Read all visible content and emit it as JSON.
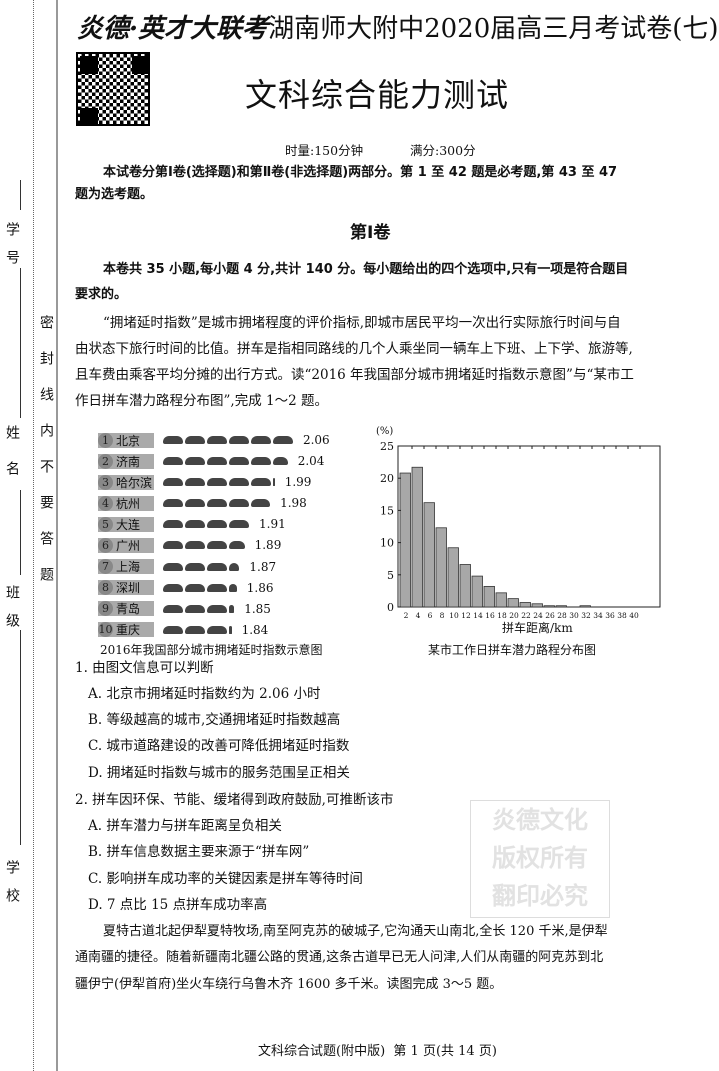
{
  "header": {
    "series": "炎德·英才大联考",
    "school_title": "湖南师大附中2020届高三月考试卷(七)",
    "subject": "文科综合能力测试",
    "time": "时量:150分钟",
    "score": "满分:300分"
  },
  "intro": [
    "本试卷分第Ⅰ卷(选择题)和第Ⅱ卷(非选择题)两部分。第 1 至 42 题是必考题,第 43 至 47",
    "题为选考题。"
  ],
  "section": {
    "title": "第Ⅰ卷",
    "instructions": [
      "本卷共 35 小题,每小题 4 分,共计 140 分。每小题给出的四个选项中,只有一项是符合题目",
      "要求的。"
    ]
  },
  "passage1": [
    "“拥堵延时指数”是城市拥堵程度的评价指标,即城市居民平均一次出行实际旅行时间与自",
    "由状态下旅行时间的比值。拼车是指相同路线的几个人乘坐同一辆车上下班、上下学、旅游等,",
    "且车费由乘客平均分摊的出行方式。读“2016 年我国部分城市拥堵延时指数示意图”与“某市工",
    "作日拼车潜力路程分布图”,完成 1～2 题。"
  ],
  "chart_data": [
    {
      "type": "bar",
      "title": "2016年我国部分城市拥堵延时指数示意图",
      "categories": [
        "北京",
        "济南",
        "哈尔滨",
        "杭州",
        "大连",
        "广州",
        "上海",
        "深圳",
        "青岛",
        "重庆"
      ],
      "ranks": [
        "1",
        "2",
        "3",
        "4",
        "5",
        "6",
        "7",
        "8",
        "9",
        "10"
      ],
      "values": [
        2.06,
        2.04,
        1.99,
        1.98,
        1.91,
        1.89,
        1.87,
        1.86,
        1.85,
        1.84
      ],
      "value_labels": [
        "2.06",
        "2.04",
        "1.99",
        "1.98",
        "1.91",
        "1.89",
        "1.87",
        "1.86",
        "1.85",
        "1.84"
      ],
      "orientation": "horizontal",
      "mark": "car-icon"
    },
    {
      "type": "bar",
      "title": "某市工作日拼车潜力路程分布图",
      "xlabel": "拼车距离/km",
      "ylabel": "(%)",
      "categories": [
        "2",
        "4",
        "6",
        "8",
        "10",
        "12",
        "14",
        "16",
        "18",
        "20",
        "22",
        "24",
        "26",
        "28",
        "30",
        "32",
        "34",
        "36",
        "38",
        "40"
      ],
      "values": [
        20.8,
        21.7,
        16.2,
        12.3,
        9.2,
        6.6,
        4.8,
        3.2,
        2.2,
        1.3,
        0.7,
        0.5,
        0.2,
        0.2,
        0,
        0.2,
        0,
        0,
        0,
        0
      ],
      "ylim": [
        0,
        25
      ],
      "yticks": [
        "0",
        "5",
        "10",
        "15",
        "20",
        "25"
      ],
      "color": "#a8a8a8"
    }
  ],
  "q1": {
    "stem": "1. 由图文信息可以判断",
    "options": [
      "A. 北京市拥堵延时指数约为 2.06 小时",
      "B. 等级越高的城市,交通拥堵延时指数越高",
      "C. 城市道路建设的改善可降低拥堵延时指数",
      "D. 拥堵延时指数与城市的服务范围呈正相关"
    ]
  },
  "q2": {
    "stem": "2. 拼车因环保、节能、缓堵得到政府鼓励,可推断该市",
    "options": [
      "A. 拼车潜力与拼车距离呈负相关",
      "B. 拼车信息数据主要来源于“拼车网”",
      "C. 影响拼车成功率的关键因素是拼车等待时间",
      "D. 7 点比 15 点拼车成功率高"
    ]
  },
  "passage2": [
    "夏特古道北起伊犁夏特牧场,南至阿克苏的破城子,它沟通天山南北,全长 120 千米,是伊犁",
    "通南疆的捷径。随着新疆南北疆公路的贯通,这条古道早已无人问津,人们从南疆的阿克苏到北",
    "疆伊宁(伊犁首府)坐火车绕行乌鲁木齐 1600 多千米。读图完成 3～5 题。"
  ],
  "watermark": [
    "炎德文化",
    "版权所有",
    "翻印必究"
  ],
  "margin": {
    "fields": [
      "学号",
      "姓名",
      "班级",
      "学校"
    ],
    "seal": "密封线内不要答题"
  },
  "footer": "文科综合试题(附中版)  第 1 页(共 14 页)"
}
